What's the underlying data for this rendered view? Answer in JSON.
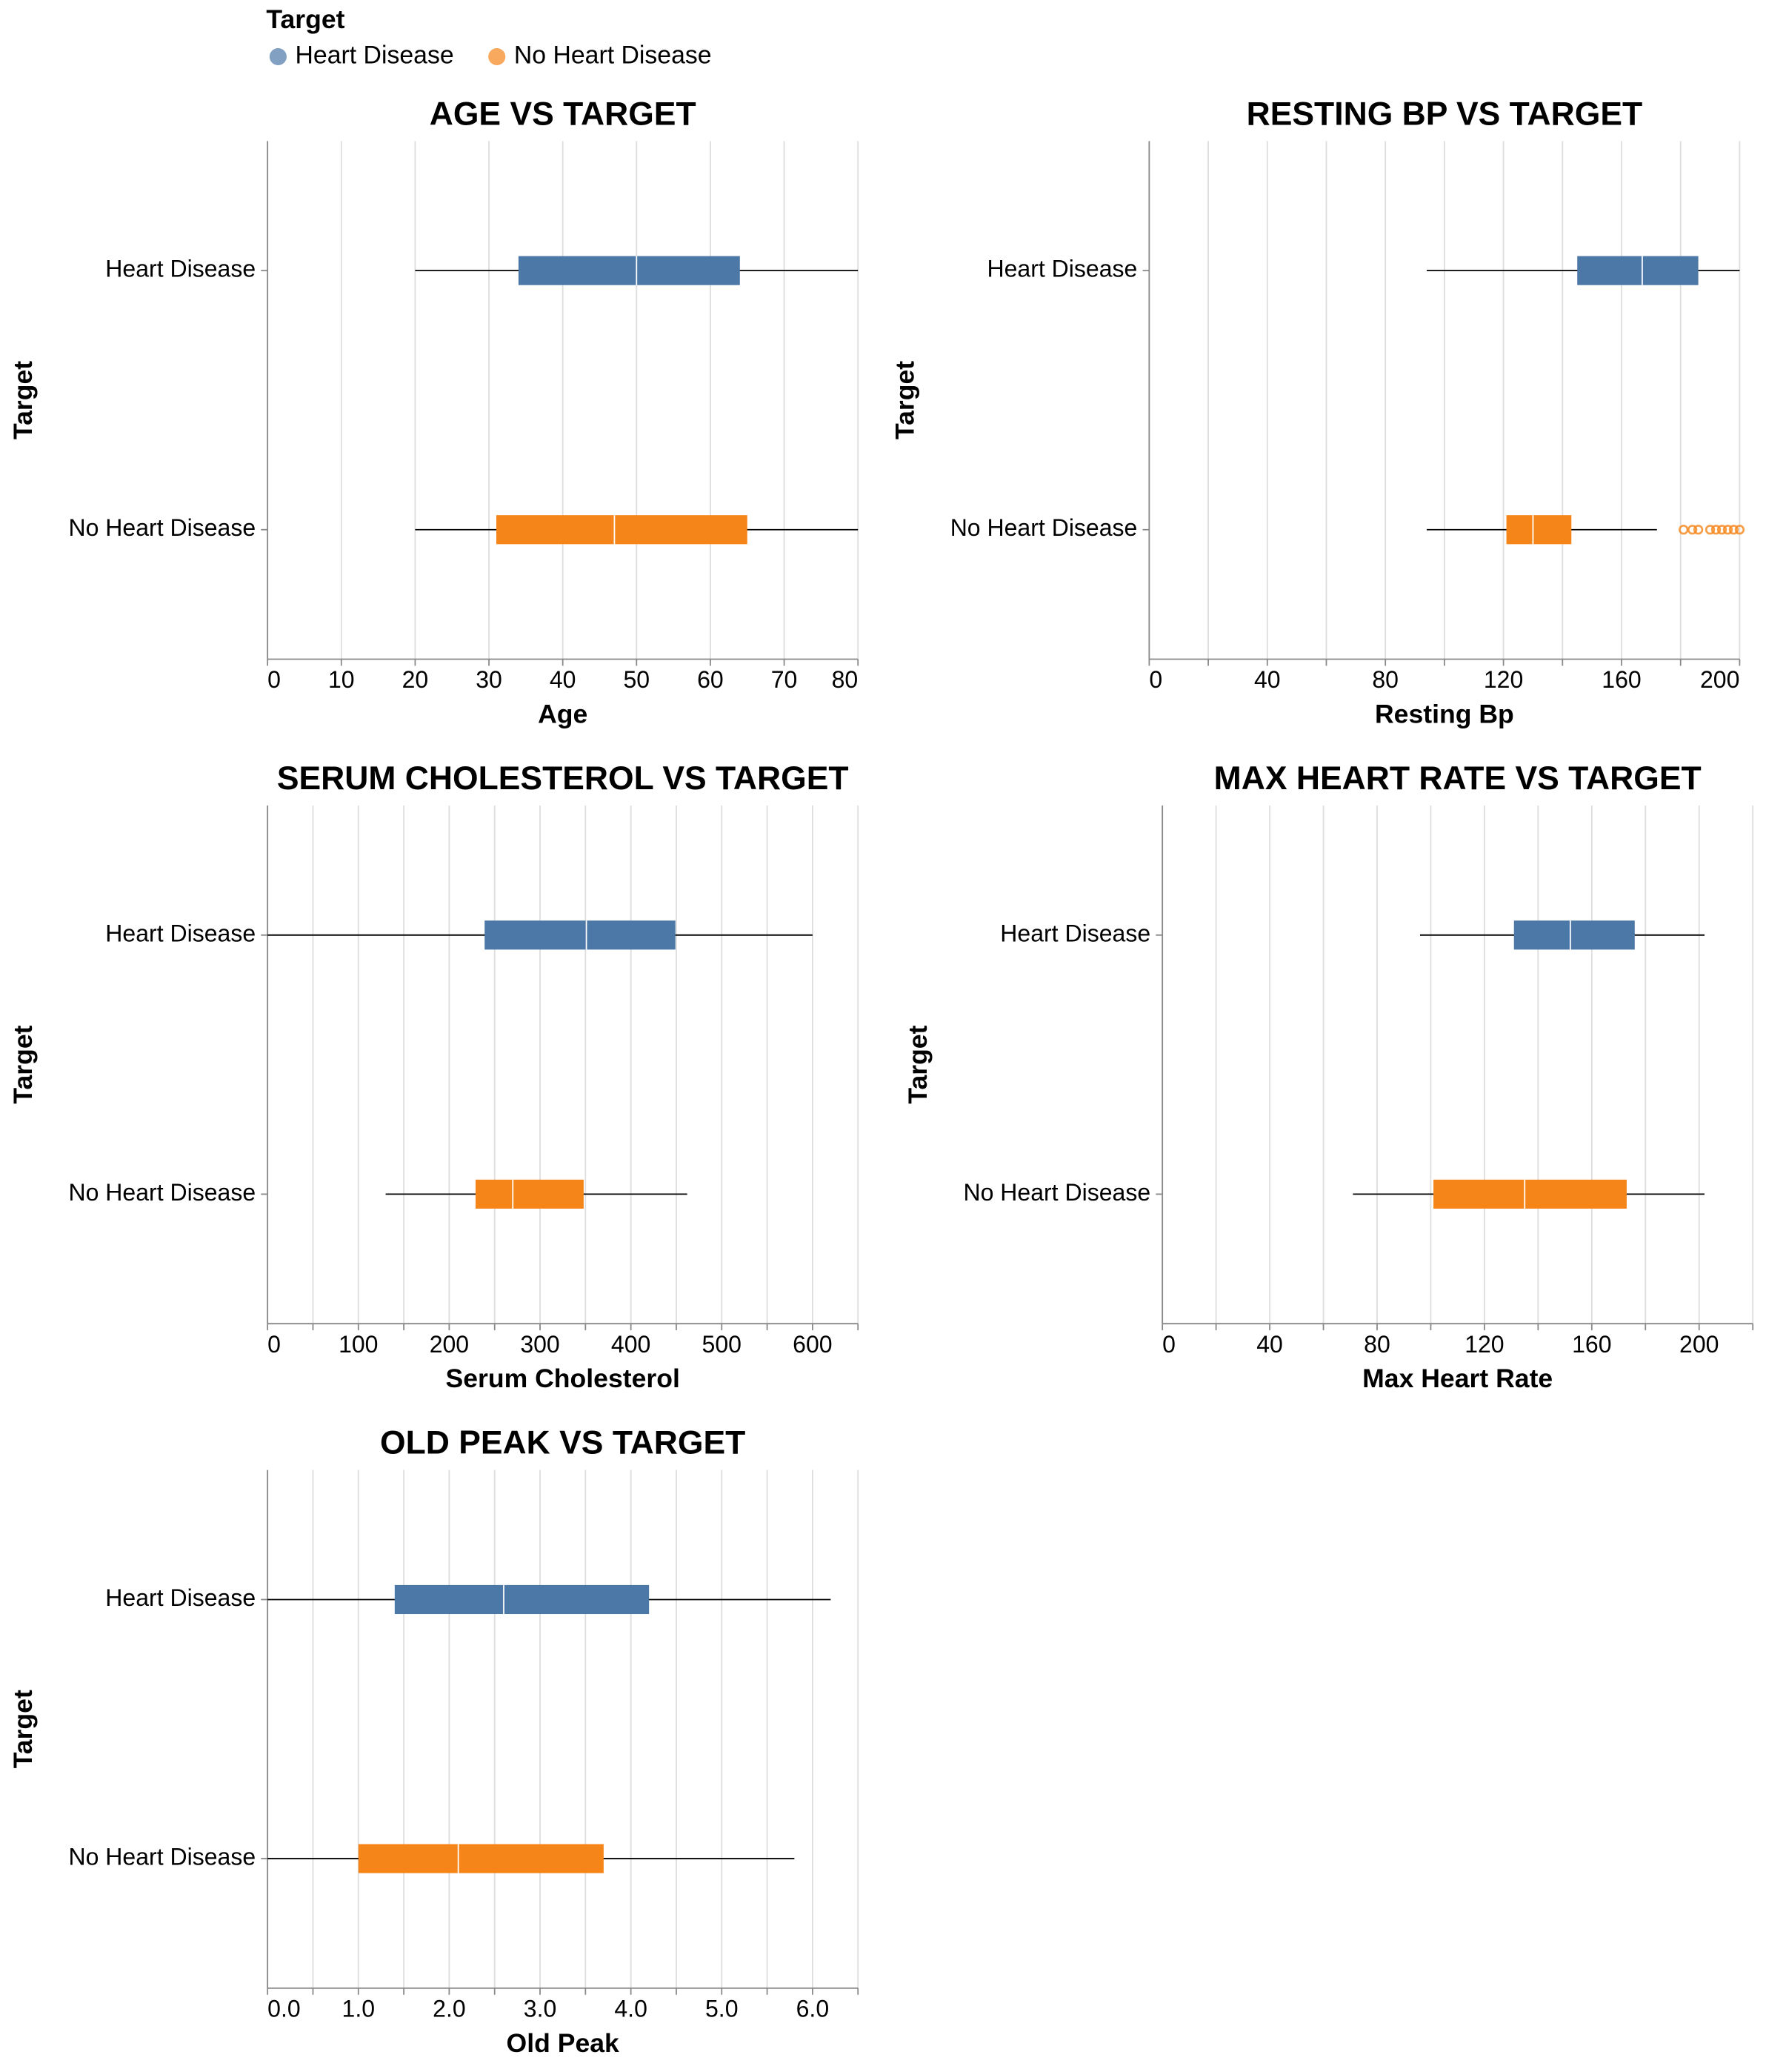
{
  "legend": {
    "title": "Target",
    "entries": [
      {
        "name": "Heart Disease",
        "color": "#4c78a8"
      },
      {
        "name": "No Heart Disease",
        "color": "#f58518"
      }
    ]
  },
  "chart_data": [
    {
      "type": "boxplot",
      "title": "AGE VS TARGET",
      "x_label": "Age",
      "y_label": "Target",
      "categories": [
        "Heart Disease",
        "No Heart Disease"
      ],
      "series": [
        {
          "name": "Heart Disease",
          "color": "#4c78a8",
          "min": 20,
          "q1": 34,
          "median": 50,
          "q3": 64,
          "max": 80,
          "outliers": []
        },
        {
          "name": "No Heart Disease",
          "color": "#f58518",
          "min": 20,
          "q1": 31,
          "median": 47,
          "q3": 65,
          "max": 80,
          "outliers": []
        }
      ],
      "xlim": [
        0,
        80
      ],
      "xticks": [
        0,
        10,
        20,
        30,
        40,
        50,
        60,
        70,
        80
      ],
      "xminorticks": [],
      "grid": true
    },
    {
      "type": "boxplot",
      "title": "RESTING BP VS TARGET",
      "x_label": "Resting Bp",
      "y_label": "Target",
      "categories": [
        "Heart Disease",
        "No Heart Disease"
      ],
      "series": [
        {
          "name": "Heart Disease",
          "color": "#4c78a8",
          "min": 94,
          "q1": 145,
          "median": 167,
          "q3": 186,
          "max": 200,
          "outliers": []
        },
        {
          "name": "No Heart Disease",
          "color": "#f58518",
          "min": 94,
          "q1": 121,
          "median": 130,
          "q3": 143,
          "max": 172,
          "outliers": [
            181,
            184,
            186,
            190,
            192,
            194,
            196,
            198,
            200
          ]
        }
      ],
      "xlim": [
        0,
        200
      ],
      "xticks": [
        0,
        40,
        80,
        120,
        160,
        200
      ],
      "xminorticks": [
        20,
        60,
        100,
        140,
        180
      ],
      "grid": true
    },
    {
      "type": "boxplot",
      "title": "SERUM CHOLESTEROL VS TARGET",
      "x_label": "Serum Cholesterol",
      "y_label": "Target",
      "categories": [
        "Heart Disease",
        "No Heart Disease"
      ],
      "series": [
        {
          "name": "Heart Disease",
          "color": "#4c78a8",
          "min": 0,
          "q1": 239,
          "median": 351,
          "q3": 449,
          "max": 600,
          "outliers": []
        },
        {
          "name": "No Heart Disease",
          "color": "#f58518",
          "min": 130,
          "q1": 229,
          "median": 270,
          "q3": 348,
          "max": 462,
          "outliers": []
        }
      ],
      "xlim": [
        0,
        650
      ],
      "xticks": [
        0,
        100,
        200,
        300,
        400,
        500,
        600
      ],
      "xminorticks": [
        50,
        150,
        250,
        350,
        450,
        550,
        650
      ],
      "grid": true
    },
    {
      "type": "boxplot",
      "title": "MAX HEART RATE VS TARGET",
      "x_label": "Max Heart Rate",
      "y_label": "Target",
      "categories": [
        "Heart Disease",
        "No Heart Disease"
      ],
      "series": [
        {
          "name": "Heart Disease",
          "color": "#4c78a8",
          "min": 96,
          "q1": 131,
          "median": 152,
          "q3": 176,
          "max": 202,
          "outliers": []
        },
        {
          "name": "No Heart Disease",
          "color": "#f58518",
          "min": 71,
          "q1": 101,
          "median": 135,
          "q3": 173,
          "max": 202,
          "outliers": []
        }
      ],
      "xlim": [
        0,
        220
      ],
      "xticks": [
        0,
        40,
        80,
        120,
        160,
        200
      ],
      "xminorticks": [
        20,
        60,
        100,
        140,
        180,
        220
      ],
      "grid": true
    },
    {
      "type": "boxplot",
      "title": "OLD PEAK VS TARGET",
      "x_label": "Old Peak",
      "y_label": "Target",
      "categories": [
        "Heart Disease",
        "No Heart Disease"
      ],
      "series": [
        {
          "name": "Heart Disease",
          "color": "#4c78a8",
          "min": 0,
          "q1": 1.4,
          "median": 2.6,
          "q3": 4.2,
          "max": 6.2,
          "outliers": []
        },
        {
          "name": "No Heart Disease",
          "color": "#f58518",
          "min": 0,
          "q1": 1.0,
          "median": 2.1,
          "q3": 3.7,
          "max": 5.8,
          "outliers": []
        }
      ],
      "xlim": [
        0,
        6.5
      ],
      "xticks": [
        {
          "value": 0,
          "label": "0.0"
        },
        {
          "value": 1,
          "label": "1.0"
        },
        {
          "value": 2,
          "label": "2.0"
        },
        {
          "value": 3,
          "label": "3.0"
        },
        {
          "value": 4,
          "label": "4.0"
        },
        {
          "value": 5,
          "label": "5.0"
        },
        {
          "value": 6,
          "label": "6.0"
        }
      ],
      "xminorticks": [
        0.5,
        1.5,
        2.5,
        3.5,
        4.5,
        5.5,
        6.5
      ],
      "grid": true
    }
  ]
}
